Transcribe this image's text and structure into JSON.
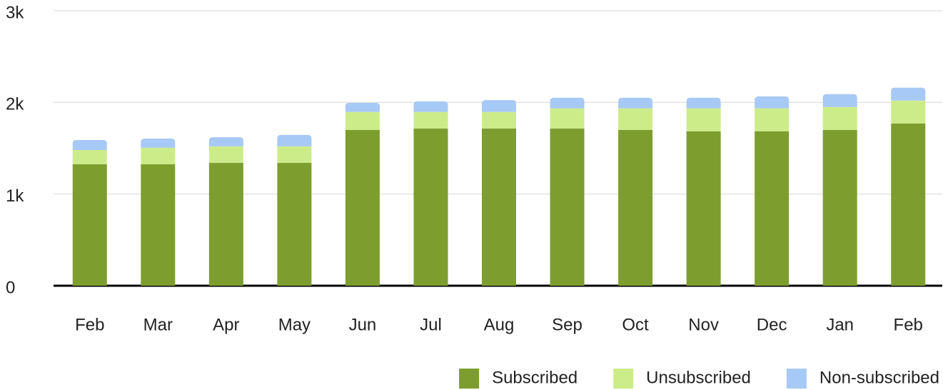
{
  "chart_data": {
    "type": "stacked_bar",
    "categories": [
      "Feb",
      "Mar",
      "Apr",
      "May",
      "Jun",
      "Jul",
      "Aug",
      "Sep",
      "Oct",
      "Nov",
      "Dec",
      "Jan",
      "Feb"
    ],
    "series": [
      {
        "name": "Subscribed",
        "color": "#7d9e2f",
        "values": [
          1325,
          1325,
          1340,
          1340,
          1700,
          1715,
          1715,
          1715,
          1700,
          1685,
          1685,
          1700,
          1770
        ]
      },
      {
        "name": "Unsubscribed",
        "color": "#ccec8a",
        "values": [
          155,
          180,
          180,
          180,
          195,
          180,
          180,
          220,
          235,
          250,
          250,
          250,
          250
        ]
      },
      {
        "name": "Non-subscribed",
        "color": "#a7c9f5",
        "values": [
          110,
          100,
          100,
          125,
          100,
          115,
          130,
          115,
          115,
          115,
          130,
          140,
          140
        ]
      }
    ],
    "ylim": [
      0,
      3000
    ],
    "yticks": [
      0,
      {
        "value": 1000,
        "label": "1k"
      },
      {
        "value": 2000,
        "label": "2k"
      },
      {
        "value": 3000,
        "label": "3k"
      }
    ],
    "grid": true,
    "legend": "bottom-right"
  }
}
